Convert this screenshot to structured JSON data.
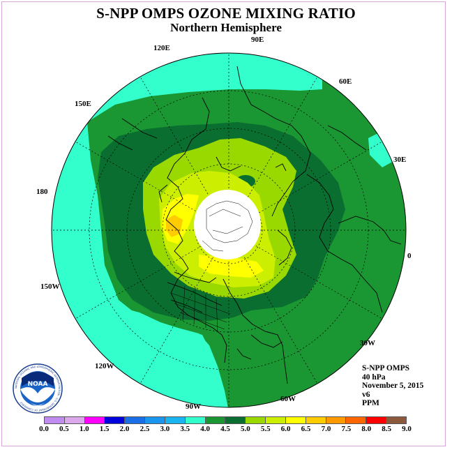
{
  "header": {
    "title": "S-NPP OMPS OZONE MIXING RATIO",
    "subtitle": "Northern Hemisphere"
  },
  "map": {
    "projection": "north-polar-stereographic",
    "longitude_labels": [
      "90E",
      "60E",
      "30E",
      "0",
      "30W",
      "60W",
      "90W",
      "120W",
      "150W",
      "180",
      "150E",
      "120E"
    ],
    "field_colors": {
      "3.5-4.0": "#33ffcc",
      "4.0-4.5": "#1a9633",
      "4.5-5.0": "#0a6e30",
      "5.0-5.5": "#99d900",
      "5.5-6.0": "#ccee00",
      "6.0-6.5": "#ffff00",
      "6.5-7.0": "#ffcc00",
      "no-data": "#ffffff"
    }
  },
  "info": {
    "instrument": "S-NPP OMPS",
    "level": "40 hPa",
    "date": "November 5, 2015",
    "version": "v6",
    "units": "PPM"
  },
  "colorbar": {
    "ticks": [
      "0.0",
      "0.5",
      "1.0",
      "1.5",
      "2.0",
      "2.5",
      "3.0",
      "3.5",
      "4.0",
      "4.5",
      "5.0",
      "5.5",
      "6.0",
      "6.5",
      "7.0",
      "7.5",
      "8.0",
      "8.5",
      "9.0"
    ],
    "colors": [
      "#c18cf0",
      "#dca8ec",
      "#ff00ff",
      "#0000dd",
      "#1a6ee6",
      "#1a96ee",
      "#1ab4f0",
      "#33ffcc",
      "#1a9633",
      "#0a6e30",
      "#99d900",
      "#ccee00",
      "#ffff00",
      "#ffcc00",
      "#ff9900",
      "#ff6600",
      "#ff0000",
      "#8b5a3c"
    ]
  },
  "logo": {
    "text": "NOAA",
    "ring_text": "NATIONAL OCEANIC AND ATMOSPHERIC ADMINISTRATION · U.S. DEPARTMENT OF COMMERCE"
  }
}
